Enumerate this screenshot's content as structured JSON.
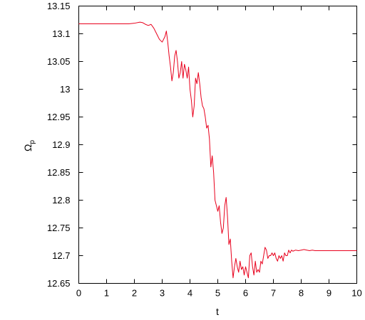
{
  "chart_data": {
    "type": "line",
    "xlabel": "t",
    "ylabel": "Ωp",
    "ylabel_main": "Ω",
    "ylabel_sub": "p",
    "xlim": [
      0,
      10
    ],
    "ylim": [
      12.65,
      13.15
    ],
    "xticks": [
      0,
      1,
      2,
      3,
      4,
      5,
      6,
      7,
      8,
      9,
      10
    ],
    "xtick_labels": [
      "0",
      "1",
      "2",
      "3",
      "4",
      "5",
      "6",
      "7",
      "8",
      "9",
      "10"
    ],
    "yticks": [
      12.65,
      12.7,
      12.75,
      12.8,
      12.85,
      12.9,
      12.95,
      13.0,
      13.05,
      13.1,
      13.15
    ],
    "ytick_labels": [
      "12.65",
      "12.7",
      "12.75",
      "12.8",
      "12.85",
      "12.9",
      "12.95",
      "13",
      "13.05",
      "13.1",
      "13.15"
    ],
    "grid": false,
    "series": [
      {
        "color": "#e8001c",
        "x": [
          0,
          0.5,
          1.0,
          1.5,
          1.8,
          2.0,
          2.2,
          2.3,
          2.4,
          2.5,
          2.6,
          2.7,
          2.8,
          2.9,
          3.0,
          3.1,
          3.15,
          3.2,
          3.25,
          3.3,
          3.35,
          3.4,
          3.45,
          3.5,
          3.55,
          3.6,
          3.65,
          3.7,
          3.75,
          3.8,
          3.85,
          3.9,
          3.95,
          4.0,
          4.05,
          4.1,
          4.15,
          4.2,
          4.25,
          4.3,
          4.35,
          4.4,
          4.45,
          4.5,
          4.55,
          4.6,
          4.65,
          4.7,
          4.75,
          4.8,
          4.85,
          4.9,
          4.95,
          5.0,
          5.05,
          5.1,
          5.15,
          5.2,
          5.25,
          5.3,
          5.35,
          5.4,
          5.45,
          5.5,
          5.55,
          5.6,
          5.65,
          5.7,
          5.75,
          5.8,
          5.85,
          5.9,
          5.95,
          6.0,
          6.05,
          6.1,
          6.15,
          6.2,
          6.25,
          6.3,
          6.35,
          6.4,
          6.45,
          6.5,
          6.55,
          6.6,
          6.65,
          6.7,
          6.75,
          6.8,
          6.85,
          6.9,
          6.95,
          7.0,
          7.05,
          7.1,
          7.15,
          7.2,
          7.25,
          7.3,
          7.35,
          7.4,
          7.45,
          7.5,
          7.55,
          7.6,
          7.65,
          7.7,
          7.8,
          7.9,
          8.0,
          8.1,
          8.2,
          8.3,
          8.4,
          8.5,
          9.0,
          9.5,
          10.0
        ],
        "y": [
          13.118,
          13.118,
          13.118,
          13.118,
          13.118,
          13.119,
          13.121,
          13.12,
          13.117,
          13.115,
          13.117,
          13.11,
          13.1,
          13.09,
          13.085,
          13.095,
          13.105,
          13.085,
          13.06,
          13.04,
          13.015,
          13.03,
          13.06,
          13.07,
          13.05,
          13.02,
          13.03,
          13.05,
          13.02,
          13.045,
          13.035,
          13.02,
          13.04,
          13.0,
          12.98,
          12.95,
          12.97,
          13.02,
          13.01,
          13.03,
          13.01,
          12.985,
          12.97,
          12.965,
          12.95,
          12.93,
          12.935,
          12.91,
          12.86,
          12.88,
          12.85,
          12.8,
          12.79,
          12.78,
          12.79,
          12.76,
          12.74,
          12.75,
          12.79,
          12.805,
          12.77,
          12.72,
          12.73,
          12.69,
          12.66,
          12.68,
          12.695,
          12.68,
          12.67,
          12.69,
          12.675,
          12.68,
          12.665,
          12.68,
          12.67,
          12.66,
          12.7,
          12.705,
          12.68,
          12.665,
          12.69,
          12.67,
          12.675,
          12.67,
          12.69,
          12.685,
          12.7,
          12.715,
          12.71,
          12.695,
          12.7,
          12.7,
          12.705,
          12.7,
          12.705,
          12.695,
          12.69,
          12.7,
          12.695,
          12.7,
          12.69,
          12.705,
          12.7,
          12.7,
          12.71,
          12.705,
          12.71,
          12.708,
          12.71,
          12.709,
          12.71,
          12.711,
          12.71,
          12.709,
          12.71,
          12.709,
          12.709,
          12.709,
          12.709
        ]
      }
    ]
  }
}
